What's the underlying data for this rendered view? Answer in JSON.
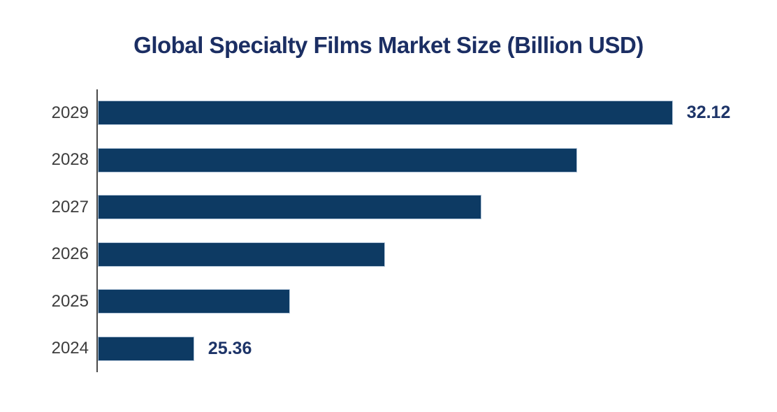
{
  "chart_data": {
    "type": "bar",
    "orientation": "horizontal",
    "title": "Global Specialty Films Market Size (Billion USD)",
    "categories": [
      "2029",
      "2028",
      "2027",
      "2026",
      "2025",
      "2024"
    ],
    "values": [
      32.12,
      30.77,
      29.42,
      28.06,
      26.71,
      25.36
    ],
    "data_labels": [
      "32.12",
      "",
      "",
      "",
      "",
      "25.36"
    ],
    "xlim": [
      24,
      33
    ],
    "grid": false,
    "legend": false,
    "axes": {
      "y_axis_line_visible": true,
      "x_axis_line_visible": false,
      "x_tick_labels_visible": false
    },
    "colors": {
      "bar_fill": "#0d3a63",
      "bar_border": "#b1c4d8",
      "title_text": "#1b2e63",
      "data_label_text": "#1d3468",
      "y_tick_text": "#3d3d3d",
      "axis_line": "#4a4a4a",
      "background": "#ffffff"
    }
  }
}
